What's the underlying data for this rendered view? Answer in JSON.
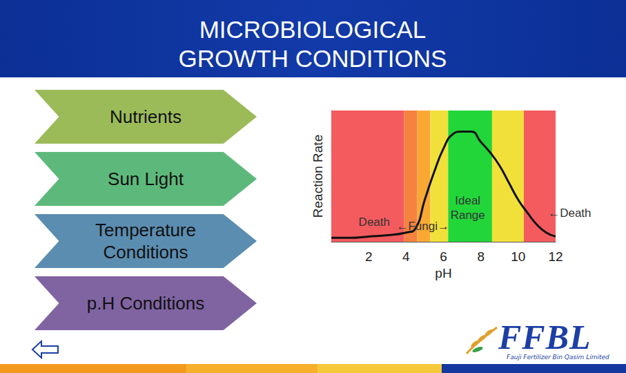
{
  "slide": {
    "title": "MICROBIOLOGICAL GROWTH CONDITIONS",
    "items": [
      {
        "label": "Nutrients",
        "color": "#9bbb59"
      },
      {
        "label": "Sun Light",
        "color": "#5db97b"
      },
      {
        "label": "Temperature Conditions",
        "color": "#5b8db0"
      },
      {
        "label": "p.H Conditions",
        "color": "#8064a2"
      }
    ],
    "logo": {
      "name": "FFBL",
      "subtitle": "Fauji Fertilizer Bin Qasim Limited"
    }
  },
  "chart_data": {
    "type": "line",
    "x_label": "pH",
    "y_label": "Reaction Rate",
    "x": [
      0,
      1,
      2,
      3,
      4,
      4.5,
      5,
      5.5,
      6,
      6.5,
      7,
      7.5,
      8,
      8.5,
      9,
      9.5,
      10,
      10.5,
      11,
      11.5,
      12
    ],
    "values": [
      3,
      3,
      4,
      5,
      7,
      10,
      32,
      53,
      71,
      82,
      84,
      84,
      76,
      68,
      58,
      45,
      32,
      22,
      13,
      7,
      4
    ],
    "color": "#111111",
    "xlim": [
      0,
      12
    ],
    "xticks": [
      2,
      4,
      6,
      8,
      10,
      12
    ],
    "ylim": [
      0,
      100
    ],
    "tick_labels": "x",
    "grid": false,
    "bands": [
      {
        "from": 0,
        "to": 3.9,
        "color": "#f45b5f"
      },
      {
        "from": 3.9,
        "to": 4.6,
        "color": "#f6823f"
      },
      {
        "from": 4.6,
        "to": 5.3,
        "color": "#f9a834"
      },
      {
        "from": 5.3,
        "to": 6.25,
        "color": "#f2e03a"
      },
      {
        "from": 6.25,
        "to": 8.6,
        "color": "#22d63a"
      },
      {
        "from": 8.6,
        "to": 10.3,
        "color": "#f2e03a"
      },
      {
        "from": 10.3,
        "to": 12,
        "color": "#f45b5f"
      }
    ],
    "annotations": [
      {
        "text": "Death",
        "x": 2.3,
        "y": 15
      },
      {
        "text": "←Fungi→",
        "x": 4.9,
        "y": 12
      },
      {
        "text": "Ideal Range",
        "x": 7.3,
        "y": 26
      },
      {
        "text": "←Death",
        "x": 11.6,
        "y": 22
      }
    ]
  }
}
